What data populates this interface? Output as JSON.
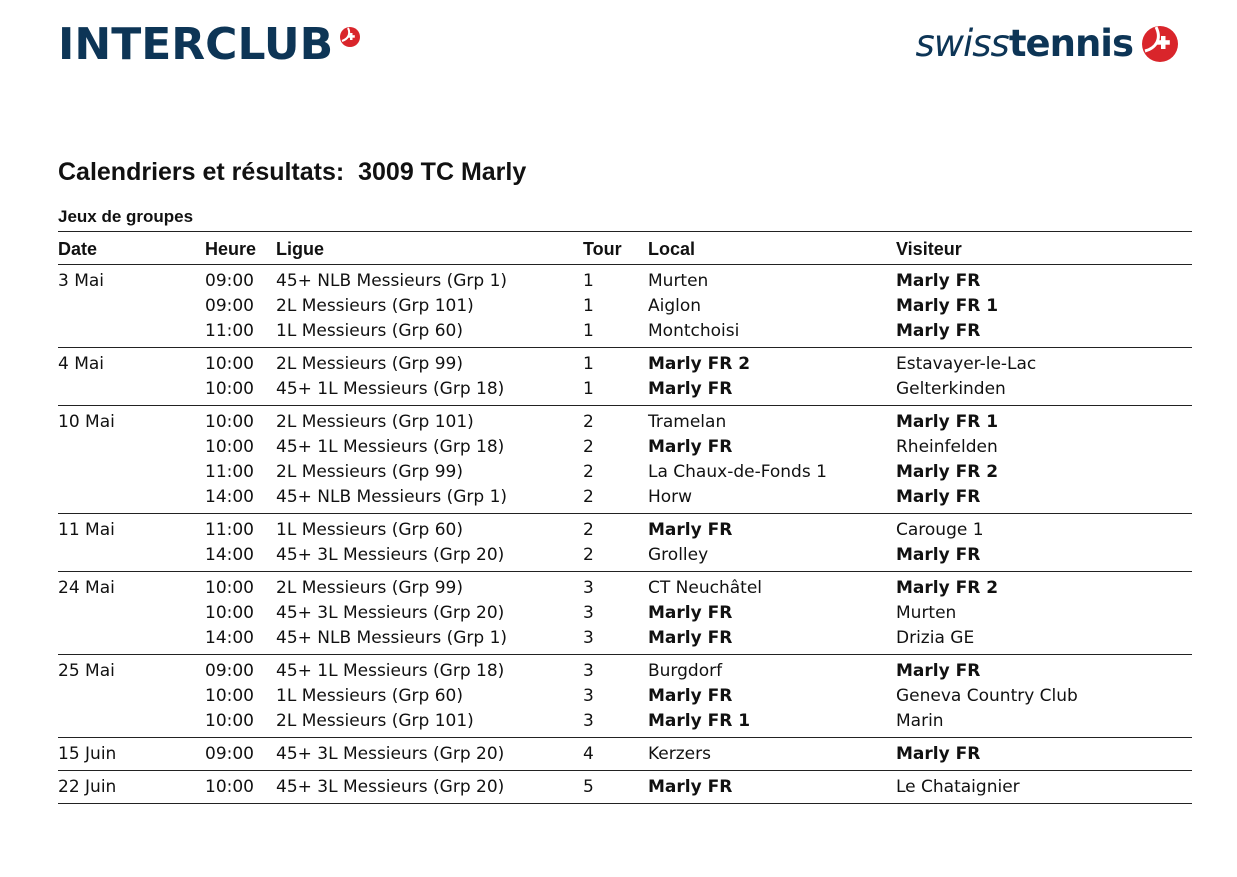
{
  "header": {
    "brand_left": "INTERCLUB",
    "brand_right_light": "swiss",
    "brand_right_bold": "tennis",
    "logo_icon": "swiss-tennis-ball-cross-icon",
    "brand_color": "#0d3556",
    "accent_color": "#d9252b"
  },
  "title": "Calendriers et résultats:  3009 TC Marly",
  "section": "Jeux de groupes",
  "columns": {
    "date": "Date",
    "heure": "Heure",
    "ligue": "Ligue",
    "tour": "Tour",
    "local": "Local",
    "visiteur": "Visiteur"
  },
  "home_club": "Marly FR",
  "groups": [
    {
      "date": "3 Mai",
      "matches": [
        {
          "heure": "09:00",
          "ligue": "45+ NLB Messieurs (Grp 1)",
          "tour": "1",
          "local": "Murten",
          "visiteur": "Marly FR"
        },
        {
          "heure": "09:00",
          "ligue": "2L Messieurs (Grp 101)",
          "tour": "1",
          "local": "Aiglon",
          "visiteur": "Marly FR 1"
        },
        {
          "heure": "11:00",
          "ligue": "1L Messieurs (Grp 60)",
          "tour": "1",
          "local": "Montchoisi",
          "visiteur": "Marly FR"
        }
      ]
    },
    {
      "date": "4 Mai",
      "matches": [
        {
          "heure": "10:00",
          "ligue": "2L Messieurs (Grp 99)",
          "tour": "1",
          "local": "Marly FR 2",
          "visiteur": "Estavayer-le-Lac"
        },
        {
          "heure": "10:00",
          "ligue": "45+ 1L Messieurs (Grp 18)",
          "tour": "1",
          "local": "Marly FR",
          "visiteur": "Gelterkinden"
        }
      ]
    },
    {
      "date": "10 Mai",
      "matches": [
        {
          "heure": "10:00",
          "ligue": "2L Messieurs (Grp 101)",
          "tour": "2",
          "local": "Tramelan",
          "visiteur": "Marly FR 1"
        },
        {
          "heure": "10:00",
          "ligue": "45+ 1L Messieurs (Grp 18)",
          "tour": "2",
          "local": "Marly FR",
          "visiteur": "Rheinfelden"
        },
        {
          "heure": "11:00",
          "ligue": "2L Messieurs (Grp 99)",
          "tour": "2",
          "local": "La Chaux-de-Fonds 1",
          "visiteur": "Marly FR 2"
        },
        {
          "heure": "14:00",
          "ligue": "45+ NLB Messieurs (Grp 1)",
          "tour": "2",
          "local": "Horw",
          "visiteur": "Marly FR"
        }
      ]
    },
    {
      "date": "11 Mai",
      "matches": [
        {
          "heure": "11:00",
          "ligue": "1L Messieurs (Grp 60)",
          "tour": "2",
          "local": "Marly FR",
          "visiteur": "Carouge 1"
        },
        {
          "heure": "14:00",
          "ligue": "45+ 3L Messieurs (Grp 20)",
          "tour": "2",
          "local": "Grolley",
          "visiteur": "Marly FR"
        }
      ]
    },
    {
      "date": "24 Mai",
      "matches": [
        {
          "heure": "10:00",
          "ligue": "2L Messieurs (Grp 99)",
          "tour": "3",
          "local": "CT Neuchâtel",
          "visiteur": "Marly FR 2"
        },
        {
          "heure": "10:00",
          "ligue": "45+ 3L Messieurs (Grp 20)",
          "tour": "3",
          "local": "Marly FR",
          "visiteur": "Murten"
        },
        {
          "heure": "14:00",
          "ligue": "45+ NLB Messieurs (Grp 1)",
          "tour": "3",
          "local": "Marly FR",
          "visiteur": "Drizia GE"
        }
      ]
    },
    {
      "date": "25 Mai",
      "matches": [
        {
          "heure": "09:00",
          "ligue": "45+ 1L Messieurs (Grp 18)",
          "tour": "3",
          "local": "Burgdorf",
          "visiteur": "Marly FR"
        },
        {
          "heure": "10:00",
          "ligue": "1L Messieurs (Grp 60)",
          "tour": "3",
          "local": "Marly FR",
          "visiteur": "Geneva Country Club"
        },
        {
          "heure": "10:00",
          "ligue": "2L Messieurs (Grp 101)",
          "tour": "3",
          "local": "Marly FR 1",
          "visiteur": "Marin"
        }
      ]
    },
    {
      "date": "15 Juin",
      "matches": [
        {
          "heure": "09:00",
          "ligue": "45+ 3L Messieurs (Grp 20)",
          "tour": "4",
          "local": "Kerzers",
          "visiteur": "Marly FR"
        }
      ]
    },
    {
      "date": "22 Juin",
      "matches": [
        {
          "heure": "10:00",
          "ligue": "45+ 3L Messieurs (Grp 20)",
          "tour": "5",
          "local": "Marly FR",
          "visiteur": "Le Chataignier"
        }
      ]
    }
  ]
}
